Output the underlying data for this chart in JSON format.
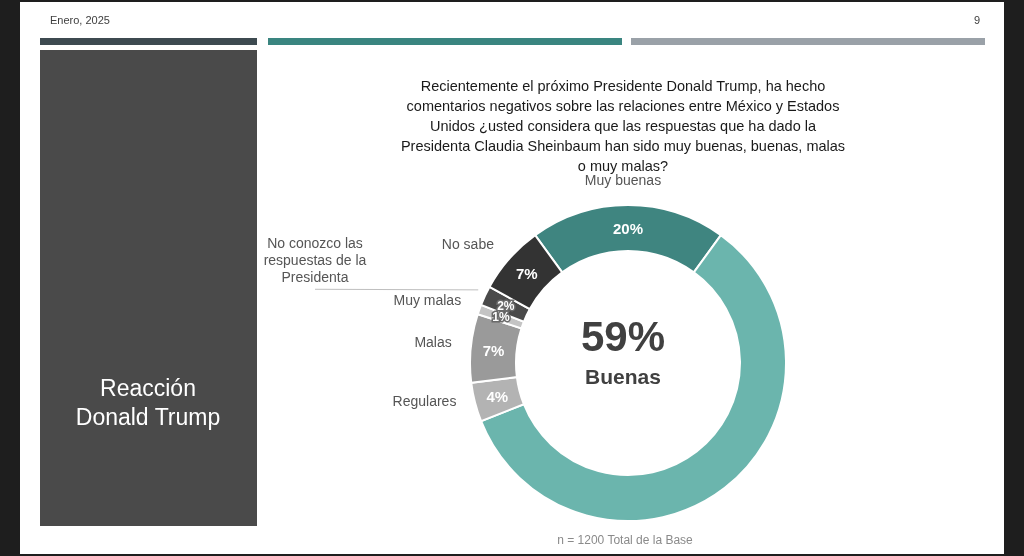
{
  "chart_data": {
    "type": "donut",
    "title": "Recientemente el próximo Presidente Donald Trump, ha hecho comentarios negativos sobre las relaciones entre México y Estados Unidos ¿usted considera que las respuestas que ha dado la Presidenta Claudia Sheinbaum han sido muy buenas, buenas, malas o muy malas?",
    "categories": [
      "Muy buenas",
      "Buenas",
      "Regulares",
      "Malas",
      "Muy malas",
      "No conozco las respuestas de la Presidenta",
      "No sabe"
    ],
    "values": [
      20,
      59,
      4,
      7,
      1,
      2,
      7
    ],
    "colors": [
      "#3f8580",
      "#6bb5ad",
      "#b3b3b3",
      "#9a9a9a",
      "#c4c4c4",
      "#4a4a4a",
      "#333333"
    ],
    "value_labels": [
      "20%",
      "59%",
      "4%",
      "7%",
      "1%",
      "2%",
      "7%"
    ],
    "legend": false,
    "annotations": [
      "Enero, 2025",
      "9",
      "Reacción Donald Trump",
      "n = 1200 Total de la Base"
    ]
  }
}
